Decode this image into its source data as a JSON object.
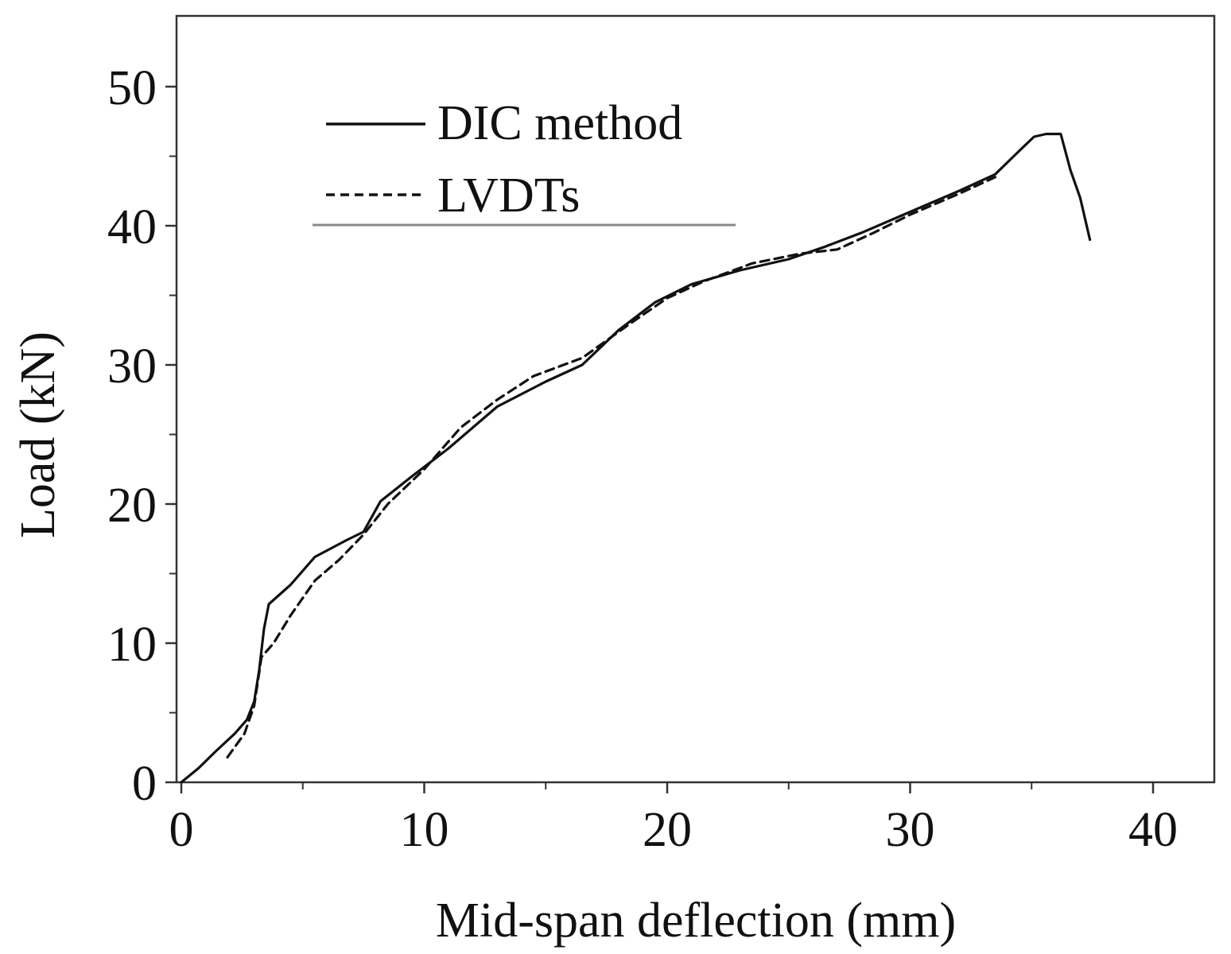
{
  "chart_data": {
    "type": "line",
    "title": "",
    "xlabel": "Mid-span deflection (mm)",
    "ylabel": "Load (kN)",
    "xlim": [
      0,
      42.5
    ],
    "ylim": [
      0,
      55
    ],
    "x_ticks": [
      0,
      10,
      20,
      30,
      40
    ],
    "y_ticks": [
      0,
      10,
      20,
      30,
      40,
      50
    ],
    "x_minor_ticks": [
      5,
      15,
      25,
      35
    ],
    "y_minor_ticks": [
      5,
      15,
      25,
      35,
      45
    ],
    "grid": false,
    "legend_position": "top-left",
    "series": [
      {
        "name": "DIC method",
        "style": "solid",
        "color": "#111111",
        "points": [
          [
            0.0,
            0.0
          ],
          [
            0.7,
            1.0
          ],
          [
            1.4,
            2.2
          ],
          [
            2.2,
            3.5
          ],
          [
            2.7,
            4.5
          ],
          [
            3.0,
            5.8
          ],
          [
            3.2,
            8.0
          ],
          [
            3.4,
            11.0
          ],
          [
            3.6,
            12.8
          ],
          [
            4.5,
            14.2
          ],
          [
            5.5,
            16.2
          ],
          [
            6.8,
            17.4
          ],
          [
            7.5,
            18.0
          ],
          [
            8.2,
            20.2
          ],
          [
            9.5,
            22.0
          ],
          [
            11.0,
            24.0
          ],
          [
            13.0,
            27.0
          ],
          [
            15.0,
            28.8
          ],
          [
            16.5,
            30.0
          ],
          [
            18.0,
            32.5
          ],
          [
            19.5,
            34.5
          ],
          [
            21.0,
            35.8
          ],
          [
            23.0,
            36.8
          ],
          [
            25.0,
            37.6
          ],
          [
            26.5,
            38.5
          ],
          [
            28.0,
            39.5
          ],
          [
            30.0,
            41.0
          ],
          [
            32.0,
            42.5
          ],
          [
            33.5,
            43.7
          ],
          [
            34.5,
            45.4
          ],
          [
            35.1,
            46.4
          ],
          [
            35.6,
            46.6
          ],
          [
            36.2,
            46.6
          ],
          [
            36.6,
            44.0
          ],
          [
            37.0,
            42.0
          ],
          [
            37.4,
            39.0
          ]
        ]
      },
      {
        "name": "LVDTs",
        "style": "dashed",
        "color": "#111111",
        "points": [
          [
            1.9,
            1.8
          ],
          [
            2.6,
            3.5
          ],
          [
            3.0,
            5.5
          ],
          [
            3.3,
            9.0
          ],
          [
            3.8,
            10.0
          ],
          [
            4.5,
            12.0
          ],
          [
            5.5,
            14.5
          ],
          [
            6.5,
            16.0
          ],
          [
            7.5,
            17.8
          ],
          [
            8.5,
            20.0
          ],
          [
            10.0,
            22.5
          ],
          [
            11.5,
            25.5
          ],
          [
            13.0,
            27.5
          ],
          [
            14.5,
            29.2
          ],
          [
            16.5,
            30.5
          ],
          [
            18.5,
            33.0
          ],
          [
            20.0,
            34.8
          ],
          [
            21.5,
            36.0
          ],
          [
            23.5,
            37.3
          ],
          [
            25.5,
            38.0
          ],
          [
            27.0,
            38.3
          ],
          [
            28.5,
            39.5
          ],
          [
            30.0,
            40.8
          ],
          [
            32.0,
            42.3
          ],
          [
            33.5,
            43.5
          ]
        ]
      }
    ]
  }
}
